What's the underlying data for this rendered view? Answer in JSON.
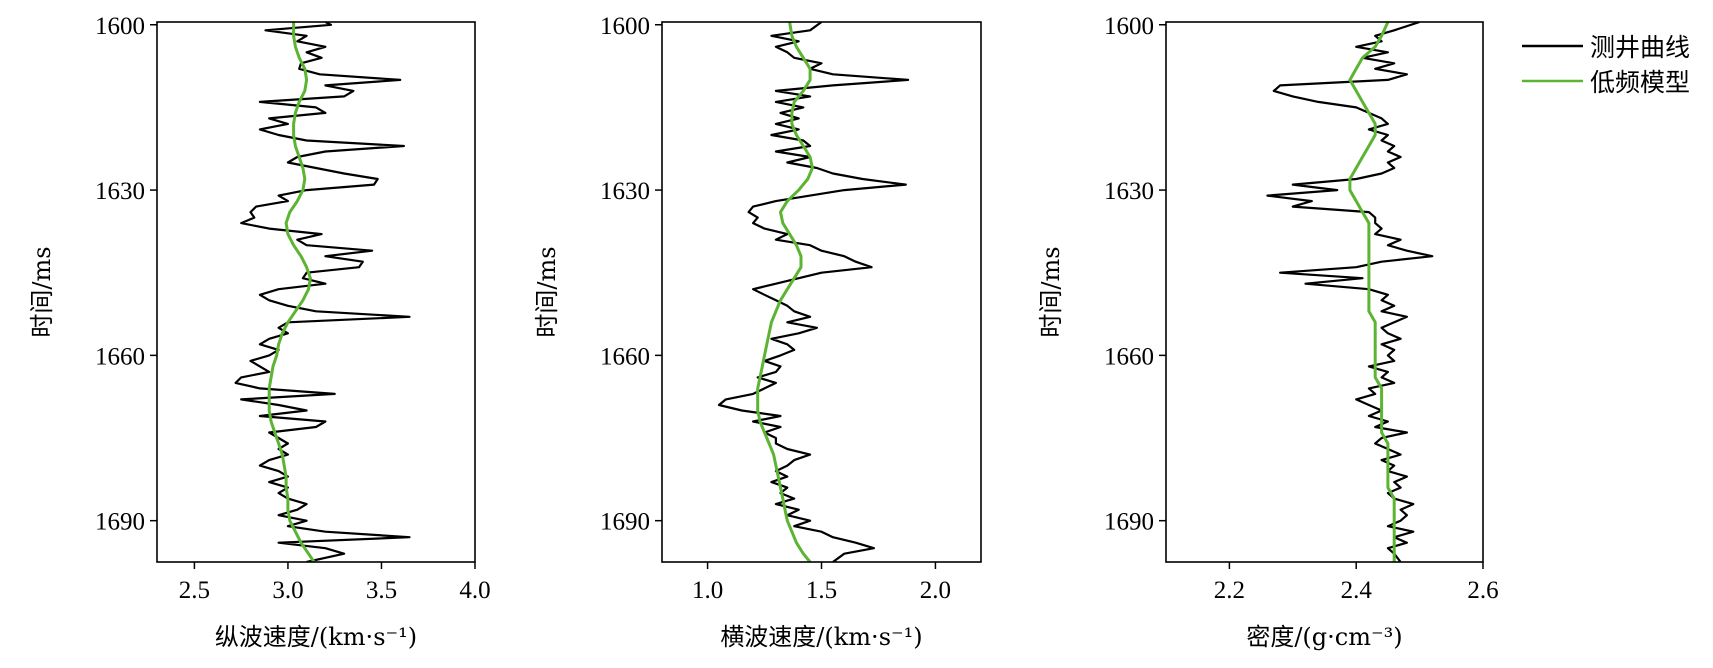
{
  "legend": {
    "items": [
      {
        "label": "测井曲线",
        "color": "#000000"
      },
      {
        "label": "低频模型",
        "color": "#5cb432"
      }
    ]
  },
  "chart_data": [
    {
      "type": "line",
      "xlabel": "纵波速度/(km·s⁻¹)",
      "ylabel": "时间/ms",
      "xlim": [
        2.3,
        4.0
      ],
      "ylim": [
        1697.5,
        1599.5
      ],
      "xticks": [
        2.5,
        3.0,
        3.5,
        4.0
      ],
      "xtick_labels": [
        "2.5",
        "3.0",
        "3.5",
        "4.0"
      ],
      "yticks": [
        1600,
        1630,
        1660,
        1690
      ],
      "ytick_labels": [
        "1600",
        "1630",
        "1660",
        "1690"
      ],
      "series": [
        {
          "name": "测井曲线",
          "color": "#000000",
          "t": [
            1599.5,
            1600,
            1601,
            1602,
            1603,
            1604,
            1605,
            1606,
            1607,
            1608,
            1609,
            1610,
            1611,
            1612,
            1613,
            1614,
            1615,
            1616,
            1617,
            1618,
            1619,
            1620,
            1621,
            1622,
            1623,
            1624,
            1625,
            1626,
            1627,
            1628,
            1629,
            1630,
            1631,
            1632,
            1633,
            1634,
            1635,
            1636,
            1637,
            1638,
            1639,
            1640,
            1641,
            1642,
            1643,
            1644,
            1645,
            1646,
            1647,
            1648,
            1649,
            1650,
            1651,
            1652,
            1653,
            1654,
            1655,
            1656,
            1657,
            1658,
            1659,
            1660,
            1661,
            1662,
            1663,
            1664,
            1665,
            1666,
            1667,
            1668,
            1669,
            1670,
            1671,
            1672,
            1673,
            1674,
            1675,
            1676,
            1677,
            1678,
            1679,
            1680,
            1681,
            1682,
            1683,
            1684,
            1685,
            1686,
            1687,
            1688,
            1689,
            1690,
            1691,
            1692,
            1693,
            1694,
            1695,
            1696,
            1697.5
          ],
          "x": [
            3.2,
            3.23,
            2.88,
            3.1,
            3.05,
            3.2,
            3.1,
            3.18,
            3.07,
            3.06,
            3.17,
            3.6,
            3.2,
            3.35,
            3.3,
            2.85,
            3.15,
            3.2,
            2.9,
            3.0,
            2.85,
            2.95,
            3.1,
            3.62,
            3.2,
            3.05,
            3.0,
            3.15,
            3.3,
            3.48,
            3.46,
            3.1,
            2.95,
            3.0,
            2.83,
            2.8,
            2.82,
            2.75,
            2.9,
            3.18,
            3.05,
            3.1,
            3.45,
            3.2,
            3.4,
            3.38,
            3.1,
            3.08,
            3.2,
            2.95,
            2.85,
            2.9,
            3.0,
            3.15,
            3.65,
            3.0,
            2.95,
            3.0,
            2.9,
            2.85,
            2.95,
            2.9,
            2.8,
            2.85,
            2.9,
            2.75,
            2.72,
            2.85,
            3.25,
            2.75,
            2.95,
            3.1,
            2.85,
            3.2,
            3.15,
            2.9,
            2.95,
            3.0,
            2.95,
            3.0,
            2.9,
            2.85,
            2.95,
            3.0,
            2.9,
            3.0,
            2.95,
            3.0,
            3.1,
            3.05,
            2.95,
            3.1,
            3.0,
            3.2,
            3.65,
            2.95,
            3.2,
            3.3,
            3.1
          ]
        },
        {
          "name": "低频模型",
          "color": "#5cb432",
          "t": [
            1599.5,
            1602,
            1604,
            1606,
            1608,
            1610,
            1612,
            1614,
            1616,
            1618,
            1620,
            1622,
            1624,
            1626,
            1628,
            1630,
            1632,
            1634,
            1636,
            1638,
            1640,
            1642,
            1644,
            1646,
            1648,
            1650,
            1652,
            1654,
            1656,
            1658,
            1660,
            1662,
            1664,
            1666,
            1668,
            1670,
            1672,
            1674,
            1676,
            1678,
            1680,
            1682,
            1684,
            1686,
            1688,
            1690,
            1692,
            1694,
            1696,
            1697.5
          ],
          "x": [
            3.03,
            3.03,
            3.04,
            3.06,
            3.09,
            3.1,
            3.09,
            3.06,
            3.04,
            3.03,
            3.03,
            3.04,
            3.06,
            3.08,
            3.09,
            3.08,
            3.05,
            3.01,
            2.99,
            3.0,
            3.03,
            3.07,
            3.1,
            3.12,
            3.11,
            3.08,
            3.04,
            3.0,
            2.97,
            2.95,
            2.94,
            2.92,
            2.91,
            2.9,
            2.9,
            2.9,
            2.91,
            2.93,
            2.95,
            2.97,
            2.98,
            2.99,
            2.99,
            3.0,
            3.0,
            3.01,
            3.04,
            3.07,
            3.11,
            3.14
          ]
        }
      ]
    },
    {
      "type": "line",
      "xlabel": "横波速度/(km·s⁻¹)",
      "ylabel": "时间/ms",
      "xlim": [
        0.8,
        2.2
      ],
      "ylim": [
        1697.5,
        1599.5
      ],
      "xticks": [
        1.0,
        1.5,
        2.0
      ],
      "xtick_labels": [
        "1.0",
        "1.5",
        "2.0"
      ],
      "yticks": [
        1600,
        1630,
        1660,
        1690
      ],
      "ytick_labels": [
        "1600",
        "1630",
        "1660",
        "1690"
      ],
      "series": [
        {
          "name": "测井曲线",
          "color": "#000000",
          "t": [
            1599.5,
            1601,
            1602,
            1603,
            1604,
            1605,
            1606,
            1607,
            1608,
            1609,
            1610,
            1611,
            1612,
            1613,
            1614,
            1615,
            1616,
            1617,
            1618,
            1619,
            1620,
            1621,
            1622,
            1623,
            1624,
            1625,
            1626,
            1627,
            1628,
            1629,
            1630,
            1631,
            1632,
            1633,
            1634,
            1635,
            1636,
            1637,
            1638,
            1639,
            1640,
            1641,
            1642,
            1643,
            1644,
            1645,
            1646,
            1647,
            1648,
            1649,
            1650,
            1651,
            1652,
            1653,
            1654,
            1655,
            1656,
            1657,
            1658,
            1659,
            1660,
            1661,
            1662,
            1663,
            1664,
            1665,
            1666,
            1667,
            1668,
            1669,
            1670,
            1671,
            1672,
            1673,
            1674,
            1675,
            1676,
            1677,
            1678,
            1679,
            1680,
            1681,
            1682,
            1683,
            1684,
            1685,
            1686,
            1687,
            1688,
            1689,
            1690,
            1691,
            1692,
            1693,
            1694,
            1695,
            1696,
            1697.5
          ],
          "x": [
            1.5,
            1.45,
            1.28,
            1.4,
            1.3,
            1.35,
            1.38,
            1.5,
            1.45,
            1.55,
            1.88,
            1.55,
            1.3,
            1.45,
            1.3,
            1.42,
            1.32,
            1.4,
            1.3,
            1.4,
            1.28,
            1.42,
            1.45,
            1.3,
            1.45,
            1.35,
            1.48,
            1.55,
            1.68,
            1.87,
            1.6,
            1.45,
            1.3,
            1.2,
            1.18,
            1.22,
            1.2,
            1.25,
            1.35,
            1.3,
            1.45,
            1.5,
            1.6,
            1.65,
            1.72,
            1.5,
            1.4,
            1.3,
            1.2,
            1.25,
            1.3,
            1.35,
            1.38,
            1.45,
            1.35,
            1.48,
            1.4,
            1.28,
            1.35,
            1.38,
            1.32,
            1.25,
            1.32,
            1.3,
            1.22,
            1.3,
            1.25,
            1.2,
            1.08,
            1.05,
            1.15,
            1.32,
            1.2,
            1.32,
            1.25,
            1.3,
            1.3,
            1.35,
            1.45,
            1.38,
            1.35,
            1.3,
            1.35,
            1.28,
            1.35,
            1.32,
            1.38,
            1.3,
            1.4,
            1.35,
            1.45,
            1.38,
            1.5,
            1.55,
            1.65,
            1.73,
            1.6,
            1.55
          ]
        },
        {
          "name": "低频模型",
          "color": "#5cb432",
          "t": [
            1599.5,
            1602,
            1604,
            1606,
            1608,
            1610,
            1612,
            1614,
            1616,
            1618,
            1620,
            1622,
            1624,
            1626,
            1628,
            1630,
            1632,
            1634,
            1636,
            1638,
            1640,
            1642,
            1644,
            1646,
            1648,
            1650,
            1652,
            1654,
            1656,
            1658,
            1660,
            1662,
            1664,
            1666,
            1668,
            1670,
            1672,
            1674,
            1676,
            1678,
            1680,
            1682,
            1684,
            1686,
            1688,
            1690,
            1692,
            1694,
            1696,
            1697.5
          ],
          "x": [
            1.36,
            1.37,
            1.39,
            1.42,
            1.45,
            1.45,
            1.42,
            1.38,
            1.37,
            1.37,
            1.39,
            1.42,
            1.45,
            1.46,
            1.44,
            1.4,
            1.35,
            1.32,
            1.33,
            1.36,
            1.39,
            1.41,
            1.41,
            1.38,
            1.35,
            1.32,
            1.3,
            1.28,
            1.27,
            1.26,
            1.25,
            1.24,
            1.23,
            1.22,
            1.22,
            1.22,
            1.23,
            1.25,
            1.27,
            1.29,
            1.3,
            1.31,
            1.32,
            1.33,
            1.34,
            1.35,
            1.37,
            1.39,
            1.42,
            1.45
          ]
        }
      ]
    },
    {
      "type": "line",
      "xlabel": "密度/(g·cm⁻³)",
      "ylabel": "时间/ms",
      "xlim": [
        2.1,
        2.6
      ],
      "ylim": [
        1697.5,
        1599.5
      ],
      "xticks": [
        2.2,
        2.4,
        2.6
      ],
      "xtick_labels": [
        "2.2",
        "2.4",
        "2.6"
      ],
      "yticks": [
        1600,
        1630,
        1660,
        1690
      ],
      "ytick_labels": [
        "1600",
        "1630",
        "1660",
        "1690"
      ],
      "series": [
        {
          "name": "测井曲线",
          "color": "#000000",
          "t": [
            1599.5,
            1601,
            1602,
            1603,
            1604,
            1605,
            1606,
            1607,
            1608,
            1609,
            1610,
            1611,
            1612,
            1613,
            1614,
            1615,
            1616,
            1617,
            1618,
            1619,
            1620,
            1621,
            1622,
            1623,
            1624,
            1625,
            1626,
            1627,
            1628,
            1629,
            1630,
            1631,
            1632,
            1633,
            1634,
            1635,
            1636,
            1637,
            1638,
            1639,
            1640,
            1641,
            1642,
            1643,
            1644,
            1645,
            1646,
            1647,
            1648,
            1649,
            1650,
            1651,
            1652,
            1653,
            1654,
            1655,
            1656,
            1657,
            1658,
            1659,
            1660,
            1661,
            1662,
            1663,
            1664,
            1665,
            1666,
            1667,
            1668,
            1669,
            1670,
            1671,
            1672,
            1673,
            1674,
            1675,
            1676,
            1677,
            1678,
            1679,
            1680,
            1681,
            1682,
            1683,
            1684,
            1685,
            1686,
            1687,
            1688,
            1689,
            1690,
            1691,
            1692,
            1693,
            1694,
            1695,
            1696,
            1697.5
          ],
          "x": [
            2.5,
            2.46,
            2.43,
            2.44,
            2.4,
            2.45,
            2.41,
            2.46,
            2.43,
            2.48,
            2.45,
            2.28,
            2.27,
            2.3,
            2.34,
            2.4,
            2.42,
            2.44,
            2.45,
            2.42,
            2.45,
            2.44,
            2.46,
            2.45,
            2.47,
            2.45,
            2.46,
            2.44,
            2.4,
            2.3,
            2.37,
            2.26,
            2.33,
            2.3,
            2.42,
            2.43,
            2.43,
            2.44,
            2.43,
            2.47,
            2.45,
            2.48,
            2.52,
            2.44,
            2.4,
            2.28,
            2.41,
            2.32,
            2.42,
            2.45,
            2.44,
            2.46,
            2.44,
            2.48,
            2.46,
            2.44,
            2.45,
            2.47,
            2.44,
            2.46,
            2.45,
            2.46,
            2.42,
            2.45,
            2.44,
            2.46,
            2.42,
            2.43,
            2.4,
            2.42,
            2.44,
            2.42,
            2.45,
            2.43,
            2.48,
            2.44,
            2.43,
            2.45,
            2.47,
            2.44,
            2.46,
            2.45,
            2.48,
            2.46,
            2.47,
            2.45,
            2.46,
            2.49,
            2.47,
            2.48,
            2.47,
            2.45,
            2.49,
            2.46,
            2.48,
            2.45,
            2.46,
            2.47
          ]
        },
        {
          "name": "低频模型",
          "color": "#5cb432",
          "t": [
            1599.5,
            1602,
            1604,
            1606,
            1608,
            1610,
            1612,
            1614,
            1616,
            1618,
            1620,
            1622,
            1624,
            1626,
            1628,
            1630,
            1632,
            1634,
            1636,
            1638,
            1640,
            1642,
            1644,
            1646,
            1648,
            1650,
            1652,
            1654,
            1656,
            1658,
            1660,
            1662,
            1664,
            1666,
            1668,
            1670,
            1672,
            1674,
            1676,
            1678,
            1680,
            1682,
            1684,
            1686,
            1688,
            1690,
            1692,
            1694,
            1696,
            1697.5
          ],
          "x": [
            2.45,
            2.44,
            2.43,
            2.41,
            2.4,
            2.39,
            2.4,
            2.41,
            2.42,
            2.43,
            2.43,
            2.42,
            2.41,
            2.4,
            2.39,
            2.39,
            2.4,
            2.41,
            2.42,
            2.42,
            2.42,
            2.42,
            2.42,
            2.42,
            2.42,
            2.42,
            2.42,
            2.43,
            2.43,
            2.43,
            2.43,
            2.43,
            2.43,
            2.44,
            2.44,
            2.44,
            2.44,
            2.44,
            2.45,
            2.45,
            2.45,
            2.45,
            2.45,
            2.46,
            2.46,
            2.46,
            2.46,
            2.46,
            2.46,
            2.46
          ]
        }
      ]
    }
  ]
}
